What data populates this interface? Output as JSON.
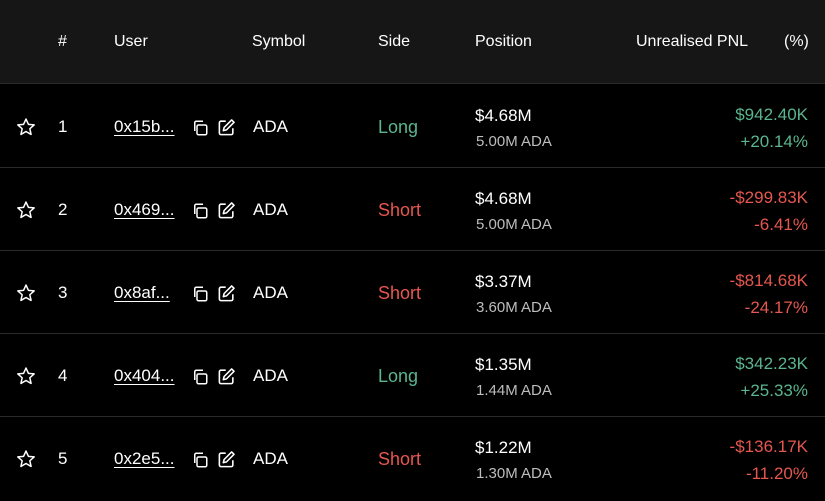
{
  "colors": {
    "positive": "#5bb58f",
    "negative": "#e5574f"
  },
  "header": {
    "num": "#",
    "user": "User",
    "symbol": "Symbol",
    "side": "Side",
    "position": "Position",
    "pnl": "Unrealised PNL",
    "pct": "(%)"
  },
  "rows": [
    {
      "rank": "1",
      "user": "0x15b...",
      "symbol": "ADA",
      "side": "Long",
      "position": "$4.68M",
      "position_sub": "5.00M ADA",
      "pnl": "$942.40K",
      "pct": "+20.14%",
      "positive": true
    },
    {
      "rank": "2",
      "user": "0x469...",
      "symbol": "ADA",
      "side": "Short",
      "position": "$4.68M",
      "position_sub": "5.00M ADA",
      "pnl": "-$299.83K",
      "pct": "-6.41%",
      "positive": false
    },
    {
      "rank": "3",
      "user": "0x8af...",
      "symbol": "ADA",
      "side": "Short",
      "position": "$3.37M",
      "position_sub": "3.60M ADA",
      "pnl": "-$814.68K",
      "pct": "-24.17%",
      "positive": false
    },
    {
      "rank": "4",
      "user": "0x404...",
      "symbol": "ADA",
      "side": "Long",
      "position": "$1.35M",
      "position_sub": "1.44M ADA",
      "pnl": "$342.23K",
      "pct": "+25.33%",
      "positive": true
    },
    {
      "rank": "5",
      "user": "0x2e5...",
      "symbol": "ADA",
      "side": "Short",
      "position": "$1.22M",
      "position_sub": "1.30M ADA",
      "pnl": "-$136.17K",
      "pct": "-11.20%",
      "positive": false
    }
  ]
}
